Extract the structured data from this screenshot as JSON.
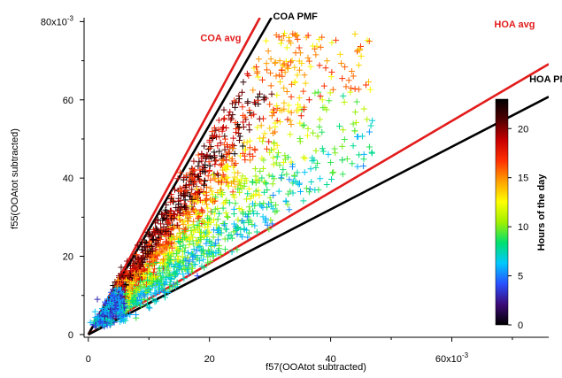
{
  "chart_data": {
    "type": "scatter",
    "marker": "+",
    "xlabel": "f57(OOAtot subtracted)",
    "ylabel": "f55(OOAtot subtracted)",
    "xlim": [
      -0.0007,
      0.076
    ],
    "ylim": [
      -0.0007,
      0.081
    ],
    "x_ticks": [
      {
        "value": 0,
        "label": "0"
      },
      {
        "value": 0.02,
        "label": "20"
      },
      {
        "value": 0.04,
        "label": "40"
      },
      {
        "value": 0.06,
        "label": "60x10"
      },
      {
        "value_exp": "-3"
      }
    ],
    "y_ticks": [
      {
        "value": 0,
        "label": "0"
      },
      {
        "value": 0.02,
        "label": "20"
      },
      {
        "value": 0.04,
        "label": "40"
      },
      {
        "value": 0.06,
        "label": "60"
      },
      {
        "value": 0.08,
        "label": "80x10"
      }
    ],
    "tick_exponent": "-3",
    "x_ticks_minor": [
      0.01,
      0.03,
      0.05,
      0.07
    ],
    "y_ticks_minor": [
      0.01,
      0.03,
      0.05,
      0.07
    ],
    "reference_lines": [
      {
        "name": "COA avg",
        "slope": 2.86,
        "color": "#e21b1b",
        "label_at": [
          0.0185,
          0.075
        ]
      },
      {
        "name": "COA PMF",
        "slope": 2.68,
        "color": "#000000",
        "label_at": [
          0.0305,
          0.0805
        ]
      },
      {
        "name": "HOA avg",
        "slope": 0.91,
        "color": "#e21b1b",
        "label_at": [
          0.067,
          0.0785
        ]
      },
      {
        "name": "HOA PMF",
        "slope": 0.8,
        "color": "#000000",
        "label_at": [
          0.0728,
          0.0645
        ]
      }
    ],
    "colorbar": {
      "title": "Hours of the day",
      "range": [
        0,
        23
      ],
      "ticks": [
        0,
        5,
        10,
        15,
        20
      ],
      "colormap": [
        "#000000",
        "#3c0a78",
        "#2850ff",
        "#00c8ff",
        "#00e070",
        "#a0f000",
        "#ffff00",
        "#ffa000",
        "#ff3000",
        "#c80000",
        "#500000",
        "#000000"
      ]
    },
    "series": [
      {
        "points_sample": [
          [
            0.0015,
            0.003,
            2
          ],
          [
            0.003,
            0.006,
            3
          ],
          [
            0.004,
            0.009,
            4
          ],
          [
            0.005,
            0.011,
            5
          ],
          [
            0.006,
            0.013,
            6
          ],
          [
            0.008,
            0.017,
            8
          ],
          [
            0.01,
            0.021,
            10
          ],
          [
            0.012,
            0.025,
            12
          ],
          [
            0.014,
            0.03,
            14
          ],
          [
            0.017,
            0.036,
            16
          ],
          [
            0.02,
            0.042,
            18
          ],
          [
            0.023,
            0.048,
            19
          ],
          [
            0.026,
            0.055,
            20
          ],
          [
            0.029,
            0.06,
            21
          ],
          [
            0.032,
            0.066,
            16
          ],
          [
            0.035,
            0.072,
            15
          ],
          [
            0.036,
            0.076,
            14
          ],
          [
            0.033,
            0.068,
            14
          ],
          [
            0.04,
            0.044,
            9
          ],
          [
            0.044,
            0.052,
            12
          ],
          [
            0.046,
            0.055,
            11
          ],
          [
            0.042,
            0.041,
            9
          ],
          [
            0.038,
            0.037,
            9
          ],
          [
            0.03,
            0.035,
            10
          ],
          [
            0.018,
            0.015,
            4
          ],
          [
            0.0015,
            0.009,
            3
          ]
        ]
      }
    ]
  }
}
